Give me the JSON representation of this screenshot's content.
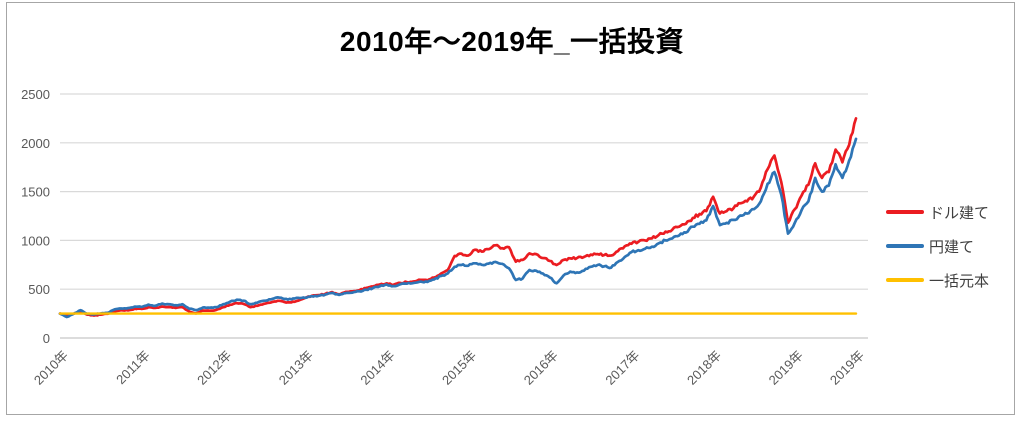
{
  "title": "2010年～2019年_一括投資",
  "legend": [
    {
      "label": "ドル建て",
      "color": "#EB1C21"
    },
    {
      "label": "円建て",
      "color": "#2E75B6"
    },
    {
      "label": "一括元本",
      "color": "#FFC000"
    }
  ],
  "colors": {
    "gridline": "#D9D9D9",
    "axis_line": "#C6C6C6",
    "tick_label": "#595959",
    "frame_border": "#A6A6A6",
    "background": "#FFFFFF"
  },
  "chart_data": {
    "type": "line",
    "title": "2010年～2019年_一括投資",
    "x_unit": "month",
    "x_start": "2010-01",
    "x_end": "2019-10",
    "x_tick_labels": [
      "2010年",
      "2011年",
      "2012年",
      "2013年",
      "2014年",
      "2015年",
      "2016年",
      "2017年",
      "2018年",
      "2019年",
      "2019年"
    ],
    "x_tick_month_index": [
      0,
      12,
      24,
      36,
      48,
      60,
      72,
      84,
      96,
      108,
      117
    ],
    "ylim": [
      0,
      2500
    ],
    "y_ticks": [
      0,
      500,
      1000,
      1500,
      2000,
      2500
    ],
    "grid": "horizontal",
    "legend_position": "right",
    "series": [
      {
        "name": "ドル建て",
        "color": "#EB1C21",
        "values": [
          250,
          228,
          248,
          272,
          240,
          230,
          240,
          248,
          272,
          285,
          283,
          300,
          298,
          315,
          308,
          323,
          318,
          308,
          316,
          272,
          252,
          282,
          280,
          289,
          316,
          340,
          357,
          348,
          316,
          330,
          350,
          364,
          381,
          368,
          365,
          382,
          410,
          432,
          440,
          452,
          470,
          448,
          472,
          478,
          490,
          512,
          530,
          548,
          560,
          545,
          565,
          572,
          580,
          595,
          590,
          620,
          660,
          697,
          840,
          865,
          845,
          905,
          885,
          910,
          950,
          920,
          930,
          782,
          800,
          867,
          860,
          820,
          790,
          748,
          800,
          816,
          820,
          830,
          855,
          860,
          850,
          845,
          890,
          940,
          965,
          985,
          1000,
          1020,
          1055,
          1090,
          1110,
          1140,
          1170,
          1230,
          1270,
          1300,
          1447,
          1276,
          1300,
          1330,
          1380,
          1400,
          1450,
          1540,
          1730,
          1870,
          1600,
          1180,
          1320,
          1460,
          1570,
          1790,
          1640,
          1700,
          1930,
          1800,
          1980,
          2250
        ]
      },
      {
        "name": "円建て",
        "color": "#2E75B6",
        "values": [
          250,
          215,
          248,
          285,
          248,
          242,
          252,
          258,
          292,
          302,
          306,
          322,
          318,
          342,
          330,
          352,
          346,
          336,
          346,
          300,
          285,
          312,
          310,
          316,
          346,
          372,
          392,
          382,
          346,
          362,
          382,
          396,
          416,
          400,
          396,
          412,
          412,
          428,
          432,
          445,
          462,
          442,
          460,
          465,
          478,
          495,
          512,
          530,
          548,
          532,
          550,
          556,
          565,
          578,
          575,
          600,
          635,
          662,
          730,
          748,
          740,
          765,
          750,
          762,
          780,
          760,
          714,
          594,
          610,
          697,
          690,
          660,
          620,
          560,
          640,
          680,
          672,
          690,
          730,
          748,
          735,
          720,
          780,
          830,
          880,
          900,
          915,
          935,
          970,
          1000,
          1020,
          1050,
          1080,
          1140,
          1170,
          1205,
          1351,
          1157,
          1180,
          1210,
          1255,
          1275,
          1320,
          1400,
          1580,
          1700,
          1470,
          1070,
          1180,
          1310,
          1400,
          1640,
          1500,
          1560,
          1780,
          1640,
          1820,
          2040
        ]
      },
      {
        "name": "一括元本",
        "color": "#FFC000",
        "constant": 250
      }
    ]
  }
}
